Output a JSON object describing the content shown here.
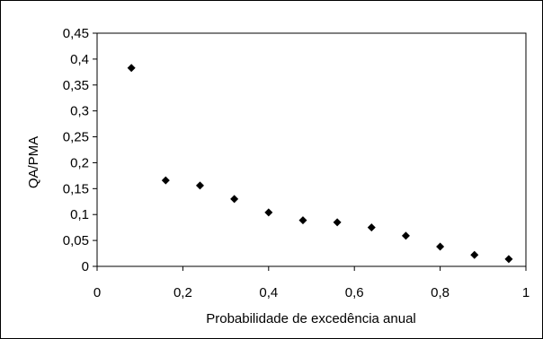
{
  "chart_data": {
    "type": "scatter",
    "title": "",
    "xlabel": "Probabilidade de excedência anual",
    "ylabel": "QA/PMA",
    "xlim": [
      0,
      1
    ],
    "ylim": [
      0,
      0.45
    ],
    "x_ticks": [
      "0",
      "0,2",
      "0,4",
      "0,6",
      "0,8",
      "1"
    ],
    "y_ticks": [
      "0",
      "0,05",
      "0,1",
      "0,15",
      "0,2",
      "0,25",
      "0,3",
      "0,35",
      "0,4",
      "0,45"
    ],
    "grid": false,
    "legend": "none",
    "marker": "diamond",
    "colors": {
      "marker": "#000000",
      "axis": "#000000",
      "frame": "#000000",
      "background": "#ffffff"
    },
    "series": [
      {
        "x": [
          0.08,
          0.16,
          0.24,
          0.32,
          0.4,
          0.48,
          0.56,
          0.64,
          0.72,
          0.8,
          0.88,
          0.96
        ],
        "y": [
          0.383,
          0.166,
          0.156,
          0.13,
          0.104,
          0.089,
          0.085,
          0.075,
          0.059,
          0.038,
          0.022,
          0.014
        ]
      }
    ]
  }
}
